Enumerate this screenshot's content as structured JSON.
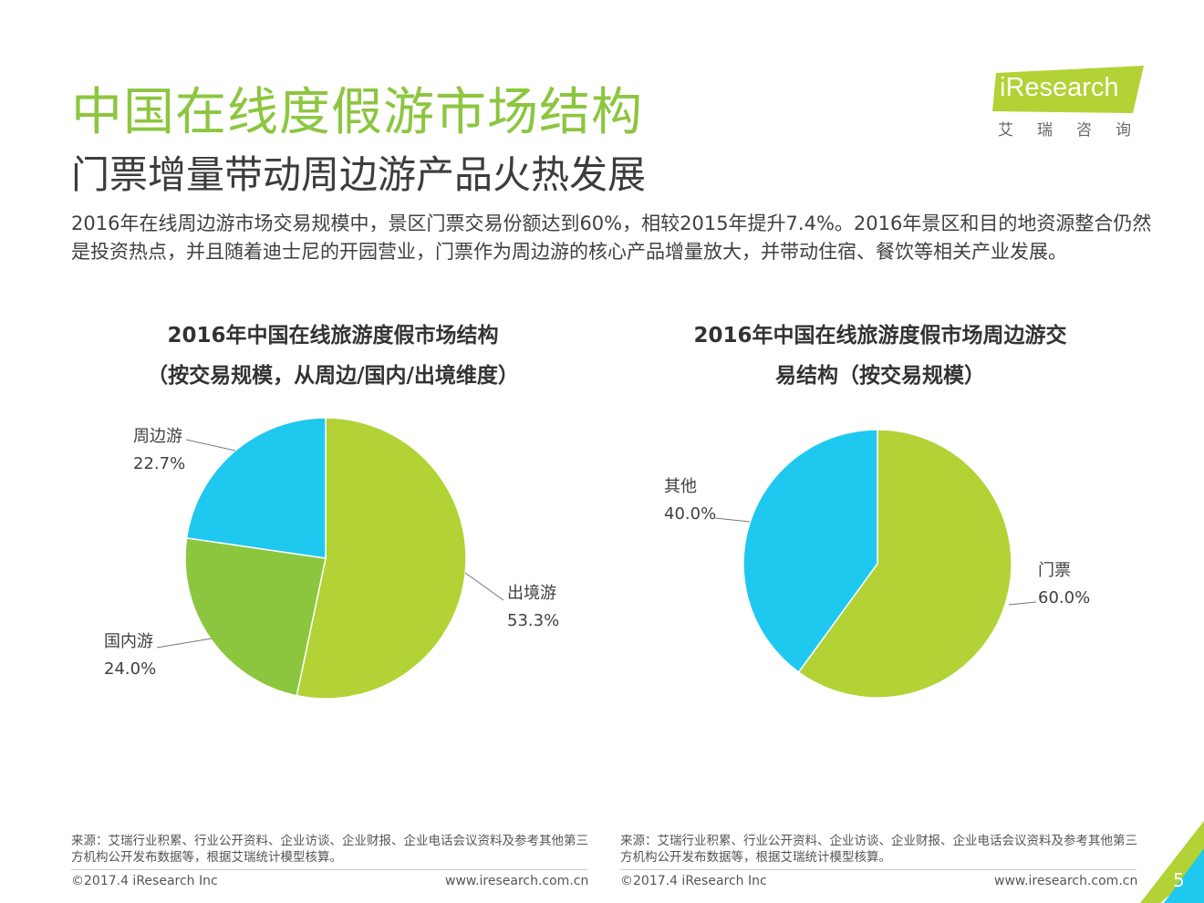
{
  "header": {
    "title": "中国在线度假游市场结构",
    "subtitle": "门票增量带动周边游产品火热发展",
    "summary": "2016年在线周边游市场交易规模中，景区门票交易份额达到60%，相较2015年提升7.4%。2016年景区和目的地资源整合仍然是投资热点，并且随着迪士尼的开园营业，门票作为周边游的核心产品增量放大，并带动住宿、餐饮等相关产业发展。"
  },
  "logo": {
    "name": "iResearch",
    "sub": "艾瑞咨询"
  },
  "colors": {
    "green": "#b2d235",
    "darkgreen": "#8cc63f",
    "blue": "#1fc8ef"
  },
  "chart_data": [
    {
      "type": "pie",
      "title_line1": "2016年中国在线旅游度假市场结构",
      "title_line2": "（按交易规模，从周边/国内/出境维度）",
      "slices": [
        {
          "label": "出境游",
          "value": 53.3,
          "display": "53.3%",
          "color": "#b2d235"
        },
        {
          "label": "国内游",
          "value": 24.0,
          "display": "24.0%",
          "color": "#8cc63f"
        },
        {
          "label": "周边游",
          "value": 22.7,
          "display": "22.7%",
          "color": "#1fc8ef"
        }
      ]
    },
    {
      "type": "pie",
      "title_line1": "2016年中国在线旅游度假市场周边游交",
      "title_line2": "易结构（按交易规模）",
      "slices": [
        {
          "label": "门票",
          "value": 60.0,
          "display": "60.0%",
          "color": "#b2d235"
        },
        {
          "label": "其他",
          "value": 40.0,
          "display": "40.0%",
          "color": "#1fc8ef"
        }
      ]
    }
  ],
  "footer": {
    "source": "来源：艾瑞行业积累、行业公开资料、企业访谈、企业财报、企业电话会议资料及参考其他第三方机构公开发布数据等，根据艾瑞统计模型核算。",
    "copyright": "©2017.4 iResearch Inc",
    "website": "www.iresearch.com.cn",
    "page": "5"
  }
}
